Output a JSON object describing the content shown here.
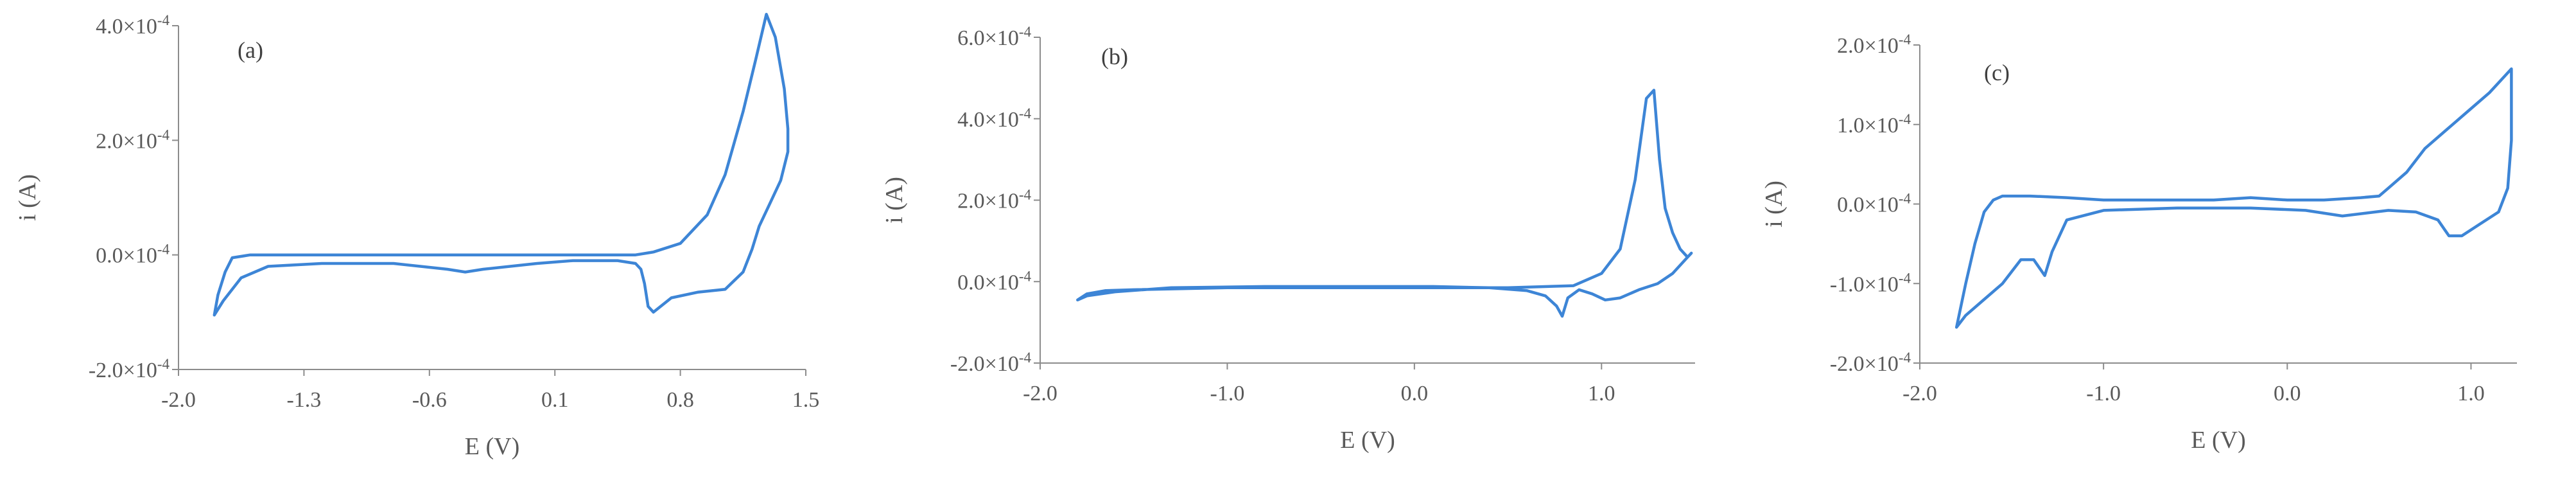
{
  "chart_data": [
    {
      "type": "line",
      "panel_label": "(a)",
      "xlabel": "E (V)",
      "ylabel": "i (A)",
      "xlim": [
        -2.0,
        1.5
      ],
      "ylim": [
        -0.0002,
        0.0004
      ],
      "x_ticks": [
        -2.0,
        -1.3,
        -0.6,
        0.1,
        0.8,
        1.5
      ],
      "x_tick_labels": [
        "-2.0",
        "-1.3",
        "-0.6",
        "0.1",
        "0.8",
        "1.5"
      ],
      "y_ticks": [
        -0.0002,
        0.0,
        0.0002,
        0.0004
      ],
      "y_tick_labels": [
        "-2.0×10-4",
        "0.0×10-4",
        "2.0×10-4",
        "4.0×10-4"
      ],
      "grid": false,
      "color": "#3d85d6",
      "series": [
        {
          "x": [
            -1.8,
            -1.78,
            -1.74,
            -1.7,
            -1.6,
            -1.4,
            -1.0,
            -0.5,
            0.0,
            0.3,
            0.45,
            0.55,
            0.65,
            0.8,
            0.95,
            1.05,
            1.15,
            1.22,
            1.28,
            1.33,
            1.38,
            1.4,
            1.4,
            1.36,
            1.3,
            1.24,
            1.2,
            1.15,
            1.05,
            0.9,
            0.75,
            0.65,
            0.62,
            0.6,
            0.58,
            0.55,
            0.45,
            0.2,
            0.0,
            -0.3,
            -0.4,
            -0.5,
            -0.8,
            -1.2,
            -1.5,
            -1.65,
            -1.75,
            -1.8
          ],
          "y": [
            -0.000105,
            -7e-05,
            -3e-05,
            -5e-06,
            0.0,
            0.0,
            0.0,
            0.0,
            0.0,
            0.0,
            0.0,
            0.0,
            5e-06,
            2e-05,
            7e-05,
            0.00014,
            0.00025,
            0.00034,
            0.00042,
            0.00038,
            0.00029,
            0.00022,
            0.00018,
            0.00013,
            9e-05,
            5e-05,
            1e-05,
            -3e-05,
            -6e-05,
            -6.5e-05,
            -7.5e-05,
            -0.0001,
            -9e-05,
            -5e-05,
            -2.5e-05,
            -1.5e-05,
            -1e-05,
            -1e-05,
            -1.5e-05,
            -2.5e-05,
            -3e-05,
            -2.5e-05,
            -1.5e-05,
            -1.5e-05,
            -2e-05,
            -4e-05,
            -8e-05,
            -0.000105
          ]
        }
      ]
    },
    {
      "type": "line",
      "panel_label": "(b)",
      "xlabel": "E (V)",
      "ylabel": "i (A)",
      "xlim": [
        -2.0,
        1.5
      ],
      "ylim": [
        -0.0002,
        0.0006
      ],
      "x_ticks": [
        -2.0,
        -1.0,
        0.0,
        1.0
      ],
      "x_tick_labels": [
        "-2.0",
        "-1.0",
        "0.0",
        "1.0"
      ],
      "y_ticks": [
        -0.0002,
        0.0,
        0.0002,
        0.0004,
        0.0006
      ],
      "y_tick_labels": [
        "-2.0×10-4",
        "0.0×10-4",
        "2.0×10-4",
        "4.0×10-4",
        "6.0×10-4"
      ],
      "grid": false,
      "color": "#3d85d6",
      "series": [
        {
          "x": [
            -1.8,
            -1.75,
            -1.65,
            -1.5,
            -1.0,
            -0.5,
            0.0,
            0.5,
            0.85,
            1.0,
            1.1,
            1.18,
            1.24,
            1.28,
            1.31,
            1.34,
            1.38,
            1.42,
            1.46,
            1.48,
            1.45,
            1.38,
            1.3,
            1.2,
            1.1,
            1.02,
            0.95,
            0.88,
            0.82,
            0.79,
            0.76,
            0.7,
            0.6,
            0.4,
            0.1,
            -0.3,
            -0.8,
            -1.3,
            -1.6,
            -1.75,
            -1.8
          ],
          "y": [
            -4.5e-05,
            -3e-05,
            -2.2e-05,
            -2e-05,
            -1.5e-05,
            -1.5e-05,
            -1.5e-05,
            -1.5e-05,
            -1e-05,
            2e-05,
            8e-05,
            0.00025,
            0.00045,
            0.00047,
            0.0003,
            0.00018,
            0.00012,
            8e-05,
            6e-05,
            7e-05,
            5.5e-05,
            2e-05,
            -5e-06,
            -2e-05,
            -4e-05,
            -4.5e-05,
            -3e-05,
            -2e-05,
            -4e-05,
            -8.5e-05,
            -6e-05,
            -3.5e-05,
            -2.2e-05,
            -1.5e-05,
            -1.2e-05,
            -1.2e-05,
            -1.2e-05,
            -1.5e-05,
            -2.5e-05,
            -3.5e-05,
            -4.5e-05
          ]
        }
      ]
    },
    {
      "type": "line",
      "panel_label": "(c)",
      "xlabel": "E (V)",
      "ylabel": "i (A)",
      "xlim": [
        -2.0,
        1.25
      ],
      "ylim": [
        -0.0002,
        0.0002
      ],
      "x_ticks": [
        -2.0,
        -1.0,
        0.0,
        1.0
      ],
      "x_tick_labels": [
        "-2.0",
        "-1.0",
        "0.0",
        "1.0"
      ],
      "y_ticks": [
        -0.0002,
        -0.0001,
        0.0,
        0.0001,
        0.0002
      ],
      "y_tick_labels": [
        "-2.0×10-4",
        "-1.0×10-4",
        "0.0×10-4",
        "1.0×10-4",
        "2.0×10-4"
      ],
      "grid": false,
      "color": "#3d85d6",
      "series": [
        {
          "x": [
            -1.8,
            -1.75,
            -1.7,
            -1.65,
            -1.6,
            -1.55,
            -1.5,
            -1.4,
            -1.2,
            -1.0,
            -0.8,
            -0.6,
            -0.4,
            -0.2,
            0.0,
            0.2,
            0.4,
            0.5,
            0.55,
            0.65,
            0.75,
            0.9,
            1.0,
            1.1,
            1.18,
            1.22,
            1.22,
            1.2,
            1.15,
            1.05,
            0.95,
            0.88,
            0.82,
            0.7,
            0.55,
            0.3,
            0.1,
            -0.2,
            -0.6,
            -1.0,
            -1.2,
            -1.28,
            -1.32,
            -1.38,
            -1.45,
            -1.55,
            -1.65,
            -1.75,
            -1.8
          ],
          "y": [
            -0.000155,
            -0.0001,
            -5e-05,
            -1e-05,
            5e-06,
            1e-05,
            1e-05,
            1e-05,
            8e-06,
            5e-06,
            5e-06,
            5e-06,
            5e-06,
            8e-06,
            5e-06,
            5e-06,
            8e-06,
            1e-05,
            2e-05,
            4e-05,
            7e-05,
            0.0001,
            0.00012,
            0.00014,
            0.00016,
            0.00017,
            8e-05,
            2e-05,
            -1e-05,
            -2.5e-05,
            -4e-05,
            -4e-05,
            -2e-05,
            -1e-05,
            -8e-06,
            -1.5e-05,
            -8e-06,
            -5e-06,
            -5e-06,
            -8e-06,
            -2e-05,
            -6e-05,
            -9e-05,
            -7e-05,
            -7e-05,
            -0.0001,
            -0.00012,
            -0.00014,
            -0.000155
          ]
        }
      ]
    }
  ]
}
